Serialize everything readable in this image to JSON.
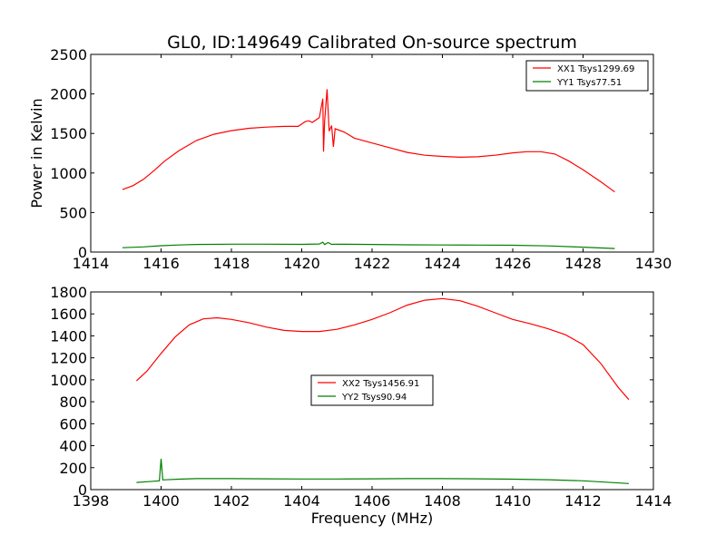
{
  "chart_data": [
    {
      "type": "line",
      "title": "GL0, ID:149649 Calibrated On-source spectrum",
      "xlabel": "",
      "ylabel": "Power in Kelvin",
      "xlim": [
        1414,
        1430
      ],
      "ylim": [
        0,
        2500
      ],
      "xticks": [
        1414,
        1416,
        1418,
        1420,
        1422,
        1424,
        1426,
        1428,
        1430
      ],
      "yticks": [
        0,
        500,
        1000,
        1500,
        2000,
        2500
      ],
      "legend_position": "top-right",
      "series": [
        {
          "name": "XX1 Tsys1299.69",
          "color": "#ff0000",
          "points": [
            [
              1414.9,
              790
            ],
            [
              1415.2,
              840
            ],
            [
              1415.5,
              920
            ],
            [
              1415.8,
              1030
            ],
            [
              1416.1,
              1150
            ],
            [
              1416.5,
              1280
            ],
            [
              1417.0,
              1410
            ],
            [
              1417.5,
              1490
            ],
            [
              1418.0,
              1535
            ],
            [
              1418.5,
              1565
            ],
            [
              1419.0,
              1580
            ],
            [
              1419.5,
              1590
            ],
            [
              1419.9,
              1590
            ],
            [
              1420.1,
              1650
            ],
            [
              1420.2,
              1660
            ],
            [
              1420.3,
              1640
            ],
            [
              1420.5,
              1700
            ],
            [
              1420.6,
              1940
            ],
            [
              1420.62,
              1270
            ],
            [
              1420.65,
              1650
            ],
            [
              1420.72,
              2060
            ],
            [
              1420.78,
              1530
            ],
            [
              1420.85,
              1600
            ],
            [
              1420.9,
              1330
            ],
            [
              1420.95,
              1560
            ],
            [
              1421.2,
              1520
            ],
            [
              1421.5,
              1440
            ],
            [
              1422.0,
              1380
            ],
            [
              1422.5,
              1320
            ],
            [
              1423.0,
              1260
            ],
            [
              1423.5,
              1225
            ],
            [
              1424.0,
              1210
            ],
            [
              1424.5,
              1200
            ],
            [
              1425.0,
              1205
            ],
            [
              1425.5,
              1225
            ],
            [
              1426.0,
              1255
            ],
            [
              1426.4,
              1270
            ],
            [
              1426.8,
              1270
            ],
            [
              1427.2,
              1240
            ],
            [
              1427.6,
              1150
            ],
            [
              1428.0,
              1040
            ],
            [
              1428.5,
              890
            ],
            [
              1428.9,
              760
            ]
          ]
        },
        {
          "name": "YY1 Tsys77.51",
          "color": "#008000",
          "points": [
            [
              1414.9,
              55
            ],
            [
              1415.5,
              65
            ],
            [
              1416.0,
              80
            ],
            [
              1416.5,
              90
            ],
            [
              1417.0,
              96
            ],
            [
              1418.0,
              100
            ],
            [
              1419.0,
              100
            ],
            [
              1420.0,
              98
            ],
            [
              1420.5,
              102
            ],
            [
              1420.6,
              125
            ],
            [
              1420.65,
              95
            ],
            [
              1420.75,
              120
            ],
            [
              1420.85,
              98
            ],
            [
              1421.0,
              100
            ],
            [
              1422.0,
              96
            ],
            [
              1423.0,
              92
            ],
            [
              1424.0,
              90
            ],
            [
              1425.0,
              88
            ],
            [
              1426.0,
              86
            ],
            [
              1427.0,
              78
            ],
            [
              1428.0,
              62
            ],
            [
              1428.9,
              45
            ]
          ]
        }
      ]
    },
    {
      "type": "line",
      "title": "",
      "xlabel": "Frequency (MHz)",
      "ylabel": "",
      "xlim": [
        1398,
        1414
      ],
      "ylim": [
        0,
        1800
      ],
      "xticks": [
        1398,
        1400,
        1402,
        1404,
        1406,
        1408,
        1410,
        1412,
        1414
      ],
      "yticks": [
        0,
        200,
        400,
        600,
        800,
        1000,
        1200,
        1400,
        1600,
        1800
      ],
      "legend_position": "center",
      "series": [
        {
          "name": "XX2 Tsys1456.91",
          "color": "#ff0000",
          "points": [
            [
              1399.3,
              990
            ],
            [
              1399.6,
              1080
            ],
            [
              1400.0,
              1240
            ],
            [
              1400.4,
              1390
            ],
            [
              1400.8,
              1500
            ],
            [
              1401.2,
              1555
            ],
            [
              1401.6,
              1565
            ],
            [
              1402.0,
              1550
            ],
            [
              1402.5,
              1520
            ],
            [
              1403.0,
              1480
            ],
            [
              1403.5,
              1450
            ],
            [
              1404.0,
              1440
            ],
            [
              1404.5,
              1440
            ],
            [
              1405.0,
              1460
            ],
            [
              1405.5,
              1500
            ],
            [
              1406.0,
              1550
            ],
            [
              1406.5,
              1610
            ],
            [
              1407.0,
              1680
            ],
            [
              1407.5,
              1725
            ],
            [
              1408.0,
              1740
            ],
            [
              1408.5,
              1720
            ],
            [
              1409.0,
              1670
            ],
            [
              1409.5,
              1610
            ],
            [
              1410.0,
              1550
            ],
            [
              1410.5,
              1510
            ],
            [
              1411.0,
              1465
            ],
            [
              1411.5,
              1410
            ],
            [
              1412.0,
              1320
            ],
            [
              1412.5,
              1150
            ],
            [
              1413.0,
              930
            ],
            [
              1413.3,
              820
            ]
          ]
        },
        {
          "name": "YY2 Tsys90.94",
          "color": "#008000",
          "points": [
            [
              1399.3,
              65
            ],
            [
              1399.6,
              72
            ],
            [
              1399.95,
              80
            ],
            [
              1400.0,
              280
            ],
            [
              1400.05,
              88
            ],
            [
              1400.5,
              95
            ],
            [
              1401.0,
              100
            ],
            [
              1402.0,
              100
            ],
            [
              1403.0,
              98
            ],
            [
              1404.0,
              97
            ],
            [
              1405.0,
              97
            ],
            [
              1406.0,
              98
            ],
            [
              1407.0,
              100
            ],
            [
              1408.0,
              100
            ],
            [
              1409.0,
              98
            ],
            [
              1410.0,
              95
            ],
            [
              1411.0,
              90
            ],
            [
              1412.0,
              80
            ],
            [
              1413.3,
              55
            ]
          ]
        }
      ]
    }
  ]
}
